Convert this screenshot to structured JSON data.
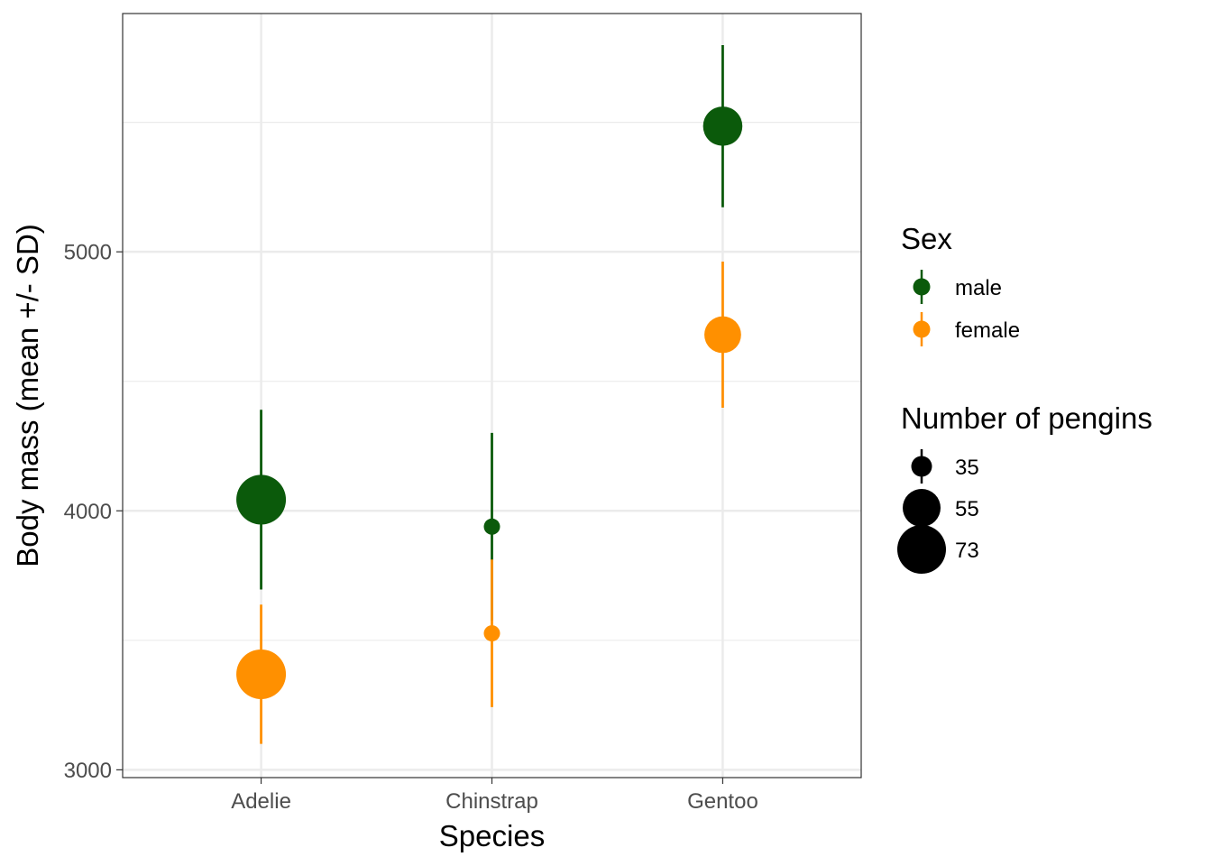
{
  "chart_data": {
    "type": "scatter",
    "xlabel": "Species",
    "ylabel": "Body mass (mean +/- SD)",
    "categories": [
      "Adelie",
      "Chinstrap",
      "Gentoo"
    ],
    "ylim": [
      2970,
      5920
    ],
    "yticks": [
      3000,
      4000,
      5000
    ],
    "yticks_minor": [
      3500,
      4500,
      5500
    ],
    "grid": true,
    "legend_position": "right",
    "series": [
      {
        "name": "male",
        "color": "#0b5a0b",
        "points": [
          {
            "category": "Adelie",
            "mean": 4043,
            "sd": 347,
            "n": 73
          },
          {
            "category": "Chinstrap",
            "mean": 3939,
            "sd": 362,
            "n": 34
          },
          {
            "category": "Gentoo",
            "mean": 5485,
            "sd": 313,
            "n": 61
          }
        ]
      },
      {
        "name": "female",
        "color": "#ff9000",
        "points": [
          {
            "category": "Adelie",
            "mean": 3369,
            "sd": 269,
            "n": 73
          },
          {
            "category": "Chinstrap",
            "mean": 3527,
            "sd": 285,
            "n": 34
          },
          {
            "category": "Gentoo",
            "mean": 4680,
            "sd": 282,
            "n": 58
          }
        ]
      }
    ],
    "legend": {
      "color_title": "Sex",
      "color_items": [
        "male",
        "female"
      ],
      "size_title": "Number of pengins",
      "size_items": [
        35,
        55,
        73
      ]
    }
  }
}
